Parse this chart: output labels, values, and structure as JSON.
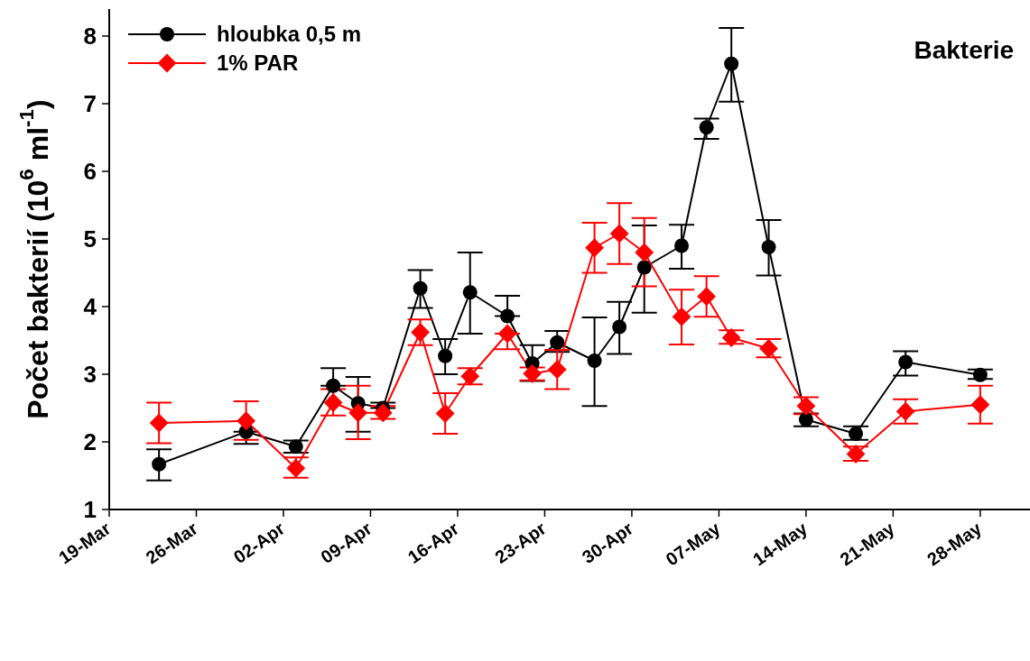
{
  "chart_data": {
    "type": "line",
    "title": "Bakterie",
    "ylabel": "Počet bakterií (10$^{6}$ ml$^{-1}$)",
    "x": [
      "--03-23",
      "--03-30",
      "--04-03",
      "--04-06",
      "--04-08",
      "--04-10",
      "--04-13",
      "--04-15",
      "--04-17",
      "--04-20",
      "--04-22",
      "--04-24",
      "--04-27",
      "--04-29",
      "--05-01",
      "--05-04",
      "--05-06",
      "--05-08",
      "--05-11",
      "--05-14",
      "--05-18",
      "--05-22",
      "--05-28"
    ],
    "series": [
      {
        "name": "hloubka 0,5 m",
        "color": "#000000",
        "marker": "circle",
        "values": [
          1.67,
          2.15,
          1.93,
          2.83,
          2.57,
          2.5,
          4.27,
          3.27,
          4.21,
          3.86,
          3.16,
          3.47,
          3.2,
          3.7,
          4.58,
          4.9,
          6.65,
          7.59,
          4.88,
          2.33,
          2.12,
          3.18,
          2.99
        ],
        "errors": [
          [
            1.43,
            1.89
          ],
          [
            1.97,
            2.15
          ],
          [
            1.84,
            2.02
          ],
          [
            2.83,
            3.09
          ],
          [
            2.15,
            2.96
          ],
          [
            2.5,
            2.58
          ],
          [
            3.98,
            4.54
          ],
          [
            3.0,
            3.52
          ],
          [
            3.6,
            4.8
          ],
          [
            3.86,
            4.16
          ],
          [
            2.9,
            3.43
          ],
          [
            3.33,
            3.64
          ],
          [
            2.53,
            3.84
          ],
          [
            3.3,
            4.07
          ],
          [
            3.91,
            5.2
          ],
          [
            4.56,
            5.21
          ],
          [
            6.48,
            6.78
          ],
          [
            7.03,
            8.12
          ],
          [
            4.46,
            5.28
          ],
          [
            2.23,
            2.42
          ],
          [
            2.03,
            2.23
          ],
          [
            2.98,
            3.34
          ],
          [
            2.93,
            3.07
          ]
        ]
      },
      {
        "name": "1% PAR",
        "color": "#ff0000",
        "marker": "diamond",
        "values": [
          2.28,
          2.31,
          1.61,
          2.58,
          2.43,
          2.43,
          3.62,
          2.42,
          2.97,
          3.6,
          3.01,
          3.07,
          4.87,
          5.08,
          4.8,
          3.85,
          4.15,
          3.54,
          3.38,
          2.53,
          1.82,
          2.45,
          2.55
        ],
        "errors": [
          [
            1.98,
            2.58
          ],
          [
            2.03,
            2.6
          ],
          [
            1.47,
            1.77
          ],
          [
            2.39,
            2.78
          ],
          [
            2.04,
            2.83
          ],
          [
            2.34,
            2.53
          ],
          [
            3.43,
            3.81
          ],
          [
            2.12,
            2.72
          ],
          [
            2.85,
            3.09
          ],
          [
            3.37,
            3.6
          ],
          [
            2.91,
            3.1
          ],
          [
            2.78,
            3.36
          ],
          [
            4.5,
            5.24
          ],
          [
            4.63,
            5.53
          ],
          [
            4.3,
            5.31
          ],
          [
            3.44,
            4.25
          ],
          [
            3.85,
            4.45
          ],
          [
            3.45,
            3.65
          ],
          [
            3.25,
            3.52
          ],
          [
            2.41,
            2.66
          ],
          [
            1.72,
            1.93
          ],
          [
            2.27,
            2.63
          ],
          [
            2.27,
            2.83
          ]
        ]
      }
    ],
    "xlim": [
      "--03-19",
      "--06-01"
    ],
    "xticks": [
      {
        "value": "--03-19",
        "label": "19-Mar"
      },
      {
        "value": "--03-26",
        "label": "26-Mar"
      },
      {
        "value": "--04-02",
        "label": "02-Apr"
      },
      {
        "value": "--04-09",
        "label": "09-Apr"
      },
      {
        "value": "--04-16",
        "label": "16-Apr"
      },
      {
        "value": "--04-23",
        "label": "23-Apr"
      },
      {
        "value": "--04-30",
        "label": "30-Apr"
      },
      {
        "value": "--05-07",
        "label": "07-May"
      },
      {
        "value": "--05-14",
        "label": "14-May"
      },
      {
        "value": "--05-21",
        "label": "21-May"
      },
      {
        "value": "--05-28",
        "label": "28-May"
      }
    ],
    "ylim": [
      1,
      8.4
    ],
    "yticks": [
      1,
      2,
      3,
      4,
      5,
      6,
      7,
      8
    ],
    "grid": false,
    "legend": "top left",
    "line_style": "solid"
  }
}
